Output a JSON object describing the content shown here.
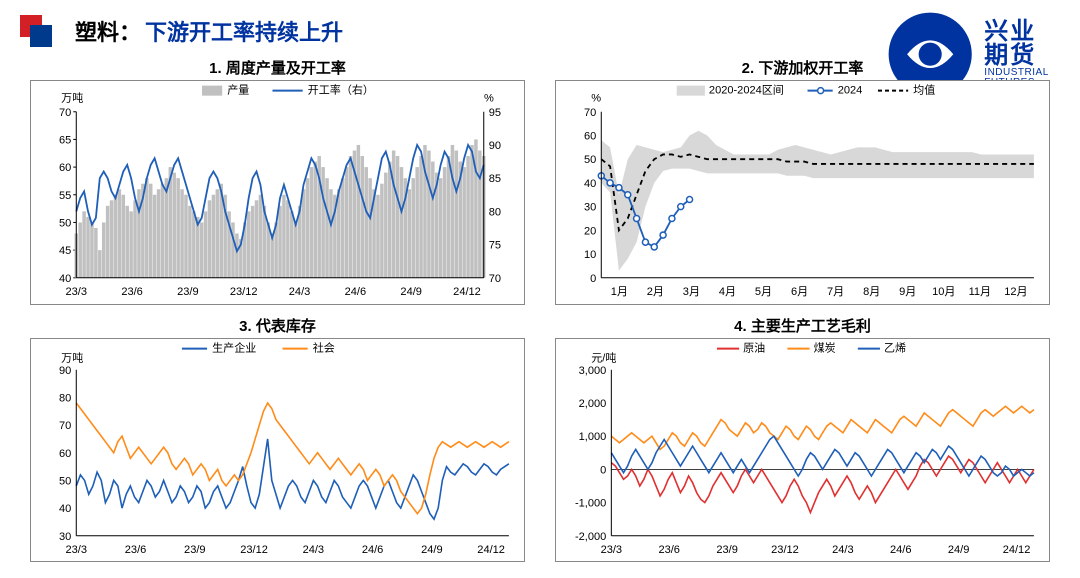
{
  "header": {
    "title_black": "塑料：",
    "title_blue": "下游开工率持续上升",
    "logo_cn": "兴业期货",
    "logo_en": "INDUSTRIAL FUTURES"
  },
  "colors": {
    "brand_blue": "#0033a0",
    "brand_red": "#d32027",
    "line_blue": "#1f5fb8",
    "line_orange": "#ff8c1a",
    "line_red": "#e03030",
    "bar_gray": "#c0c0c0",
    "band_gray": "#d8d8d8",
    "grid": "#aaaaaa",
    "axis": "#000000"
  },
  "chart1": {
    "title": "1. 周度产量及开工率",
    "y1_label": "万吨",
    "y2_label": "%",
    "y1_min": 40,
    "y1_max": 70,
    "y1_step": 5,
    "y2_min": 70,
    "y2_max": 95,
    "y2_step": 5,
    "x_ticks": [
      "23/3",
      "23/6",
      "23/9",
      "23/12",
      "24/3",
      "24/6",
      "24/9",
      "24/12"
    ],
    "legend": {
      "bar": "产量",
      "line": "开工率（右）"
    },
    "bars": [
      48,
      50,
      52,
      51,
      50,
      49,
      45,
      50,
      53,
      54,
      55,
      56,
      55,
      53,
      52,
      54,
      56,
      57,
      58,
      57,
      55,
      56,
      57,
      58,
      60,
      59,
      58,
      56,
      55,
      53,
      52,
      51,
      50,
      52,
      54,
      55,
      56,
      57,
      55,
      52,
      50,
      48,
      47,
      50,
      52,
      53,
      54,
      55,
      53,
      50,
      48,
      50,
      53,
      55,
      54,
      52,
      50,
      53,
      56,
      58,
      60,
      61,
      62,
      60,
      58,
      56,
      55,
      56,
      58,
      60,
      62,
      63,
      64,
      62,
      60,
      58,
      56,
      55,
      57,
      59,
      61,
      63,
      62,
      60,
      58,
      56,
      58,
      60,
      62,
      64,
      63,
      61,
      59,
      58,
      60,
      62,
      64,
      63,
      61,
      60,
      62,
      64,
      65,
      63,
      62
    ],
    "line": [
      80,
      82,
      83,
      80,
      78,
      79,
      85,
      86,
      85,
      83,
      82,
      84,
      86,
      87,
      85,
      82,
      80,
      82,
      85,
      87,
      88,
      86,
      84,
      83,
      85,
      87,
      88,
      86,
      84,
      82,
      80,
      78,
      79,
      82,
      85,
      86,
      85,
      83,
      80,
      78,
      76,
      74,
      75,
      78,
      82,
      85,
      86,
      84,
      80,
      78,
      76,
      78,
      82,
      84,
      82,
      80,
      78,
      80,
      84,
      86,
      88,
      87,
      85,
      82,
      80,
      78,
      80,
      83,
      85,
      87,
      88,
      86,
      84,
      82,
      80,
      79,
      82,
      85,
      88,
      89,
      87,
      84,
      82,
      80,
      82,
      85,
      88,
      90,
      89,
      86,
      84,
      82,
      84,
      87,
      89,
      88,
      85,
      83,
      85,
      88,
      90,
      89,
      86,
      85,
      87
    ]
  },
  "chart2": {
    "title": "2. 下游加权开工率",
    "y_label": "%",
    "y_min": 0,
    "y_max": 70,
    "y_step": 10,
    "x_ticks": [
      "1月",
      "2月",
      "3月",
      "4月",
      "5月",
      "6月",
      "7月",
      "8月",
      "9月",
      "10月",
      "11月",
      "12月"
    ],
    "legend": {
      "band": "2020-2024区间",
      "line_solid": "2024",
      "line_dash": "均值"
    },
    "band_top": [
      58,
      55,
      35,
      50,
      56,
      55,
      54,
      53,
      54,
      55,
      60,
      62,
      60,
      56,
      54,
      52,
      52,
      52,
      52,
      52,
      54,
      55,
      56,
      55,
      54,
      53,
      52,
      53,
      54,
      55,
      55,
      55,
      54,
      53,
      53,
      53,
      53,
      53,
      53,
      53,
      53,
      53,
      53,
      52,
      52,
      52,
      52,
      52,
      52,
      52
    ],
    "band_bot": [
      40,
      36,
      3,
      8,
      15,
      30,
      40,
      45,
      46,
      46,
      46,
      45,
      44,
      44,
      44,
      44,
      44,
      44,
      44,
      44,
      44,
      43,
      43,
      43,
      42,
      42,
      42,
      42,
      42,
      42,
      42,
      42,
      42,
      42,
      42,
      42,
      42,
      42,
      42,
      42,
      42,
      42,
      42,
      42,
      42,
      42,
      42,
      42,
      42,
      42
    ],
    "mean_line": [
      50,
      47,
      20,
      25,
      35,
      45,
      50,
      52,
      52,
      51,
      52,
      51,
      50,
      50,
      50,
      50,
      50,
      50,
      50,
      50,
      50,
      49,
      49,
      49,
      48,
      48,
      48,
      48,
      48,
      48,
      48,
      48,
      48,
      48,
      48,
      48,
      48,
      48,
      48,
      48,
      48,
      48,
      48,
      48,
      48,
      48,
      48,
      48,
      48,
      48
    ],
    "line2024": [
      43,
      40,
      38,
      35,
      25,
      15,
      13,
      18,
      25,
      30,
      33
    ]
  },
  "chart3": {
    "title": "3. 代表库存",
    "y_label": "万吨",
    "y_min": 30,
    "y_max": 90,
    "y_step": 10,
    "x_ticks": [
      "23/3",
      "23/6",
      "23/9",
      "23/12",
      "24/3",
      "24/6",
      "24/9",
      "24/12"
    ],
    "legend": {
      "s1": "生产企业",
      "s2": "社会"
    },
    "producer": [
      48,
      52,
      50,
      45,
      48,
      53,
      50,
      42,
      45,
      50,
      48,
      40,
      45,
      48,
      44,
      42,
      46,
      50,
      48,
      44,
      46,
      50,
      46,
      42,
      44,
      48,
      46,
      42,
      44,
      48,
      46,
      40,
      42,
      46,
      48,
      44,
      40,
      42,
      46,
      50,
      55,
      48,
      42,
      40,
      45,
      55,
      65,
      50,
      45,
      40,
      44,
      48,
      50,
      48,
      44,
      42,
      46,
      50,
      48,
      44,
      42,
      46,
      50,
      48,
      44,
      42,
      40,
      44,
      48,
      50,
      48,
      44,
      40,
      44,
      48,
      50,
      46,
      42,
      40,
      44,
      48,
      52,
      50,
      46,
      42,
      38,
      36,
      40,
      50,
      55,
      53,
      52,
      54,
      56,
      55,
      53,
      52,
      54,
      56,
      55,
      53,
      52,
      54,
      55,
      56
    ],
    "social": [
      78,
      76,
      74,
      72,
      70,
      68,
      66,
      64,
      62,
      60,
      64,
      66,
      62,
      58,
      60,
      62,
      60,
      58,
      56,
      58,
      60,
      62,
      60,
      56,
      54,
      56,
      58,
      56,
      52,
      54,
      56,
      54,
      50,
      52,
      54,
      50,
      48,
      50,
      52,
      50,
      52,
      56,
      60,
      65,
      70,
      75,
      78,
      76,
      72,
      70,
      68,
      66,
      64,
      62,
      60,
      58,
      56,
      58,
      60,
      58,
      56,
      54,
      56,
      58,
      56,
      54,
      52,
      54,
      56,
      54,
      50,
      52,
      54,
      52,
      48,
      50,
      52,
      50,
      46,
      44,
      42,
      40,
      38,
      40,
      45,
      52,
      58,
      62,
      64,
      63,
      62,
      63,
      64,
      63,
      62,
      63,
      64,
      63,
      62,
      63,
      64,
      63,
      62,
      63,
      64
    ]
  },
  "chart4": {
    "title": "4. 主要生产工艺毛利",
    "y_label": "元/吨",
    "y_min": -2000,
    "y_max": 3000,
    "y_step": 1000,
    "x_ticks": [
      "23/3",
      "23/6",
      "23/9",
      "23/12",
      "24/3",
      "24/6",
      "24/9",
      "24/12"
    ],
    "legend": {
      "s1": "原油",
      "s2": "煤炭",
      "s3": "乙烯"
    },
    "crude": [
      200,
      100,
      -100,
      -300,
      -200,
      0,
      -200,
      -500,
      -300,
      0,
      -200,
      -500,
      -800,
      -600,
      -300,
      -100,
      -400,
      -700,
      -500,
      -200,
      -400,
      -700,
      -900,
      -1000,
      -800,
      -500,
      -300,
      -100,
      -300,
      -500,
      -700,
      -500,
      -200,
      0,
      -200,
      -400,
      -200,
      0,
      -200,
      -400,
      -600,
      -800,
      -1000,
      -800,
      -500,
      -300,
      -500,
      -800,
      -1000,
      -1300,
      -1000,
      -700,
      -500,
      -300,
      -500,
      -800,
      -600,
      -400,
      -200,
      -400,
      -700,
      -900,
      -700,
      -500,
      -700,
      -1000,
      -800,
      -600,
      -400,
      -200,
      0,
      -200,
      -400,
      -600,
      -400,
      -200,
      100,
      300,
      200,
      0,
      -200,
      0,
      200,
      400,
      300,
      100,
      -100,
      100,
      300,
      200,
      0,
      -200,
      -400,
      -200,
      0,
      200,
      0,
      -200,
      -400,
      -200,
      0,
      -200,
      -400,
      -200,
      0
    ],
    "coal": [
      1000,
      900,
      800,
      900,
      1000,
      1100,
      1000,
      900,
      800,
      900,
      1000,
      800,
      600,
      700,
      900,
      1100,
      1000,
      800,
      700,
      900,
      1100,
      1000,
      800,
      700,
      900,
      1100,
      1300,
      1500,
      1400,
      1200,
      1100,
      1000,
      1200,
      1400,
      1300,
      1100,
      1200,
      1400,
      1300,
      1100,
      1000,
      900,
      1100,
      1300,
      1200,
      1000,
      900,
      1100,
      1300,
      1200,
      1000,
      900,
      1100,
      1300,
      1400,
      1300,
      1200,
      1100,
      1300,
      1500,
      1400,
      1300,
      1200,
      1100,
      1300,
      1500,
      1400,
      1300,
      1200,
      1100,
      1300,
      1500,
      1600,
      1500,
      1400,
      1300,
      1500,
      1700,
      1600,
      1500,
      1400,
      1300,
      1500,
      1700,
      1800,
      1700,
      1600,
      1500,
      1400,
      1300,
      1500,
      1700,
      1800,
      1700,
      1600,
      1700,
      1800,
      1900,
      1800,
      1700,
      1800,
      1900,
      1800,
      1700,
      1800
    ],
    "ethylene": [
      500,
      300,
      100,
      -100,
      100,
      400,
      600,
      400,
      200,
      0,
      200,
      500,
      700,
      900,
      700,
      500,
      300,
      100,
      300,
      500,
      700,
      500,
      300,
      100,
      -100,
      100,
      300,
      500,
      300,
      100,
      -100,
      100,
      300,
      100,
      -100,
      100,
      300,
      500,
      700,
      900,
      1000,
      800,
      600,
      400,
      200,
      0,
      -200,
      0,
      300,
      500,
      400,
      200,
      0,
      200,
      400,
      600,
      500,
      300,
      100,
      300,
      500,
      400,
      200,
      0,
      -200,
      0,
      200,
      400,
      600,
      500,
      300,
      100,
      -100,
      100,
      300,
      500,
      400,
      200,
      400,
      600,
      500,
      300,
      500,
      700,
      600,
      400,
      200,
      0,
      -200,
      0,
      200,
      400,
      300,
      100,
      -100,
      -200,
      -100,
      100,
      0,
      -200,
      -100,
      0,
      -100,
      -200,
      -100
    ]
  }
}
